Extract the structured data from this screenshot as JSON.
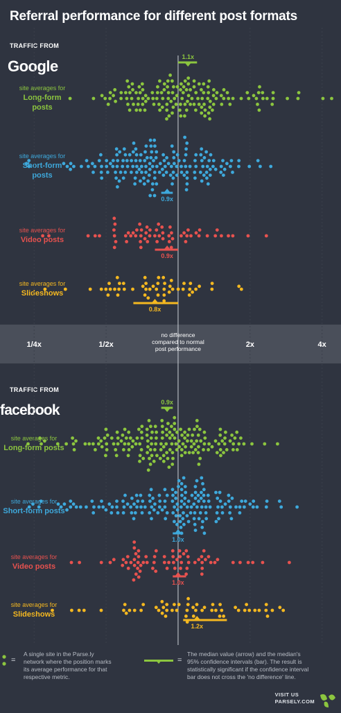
{
  "title": "Referral performance for different post formats",
  "axis": {
    "ticks": [
      {
        "value": 0.25,
        "label": "1/4x"
      },
      {
        "value": 0.5,
        "label": "1/2x"
      },
      {
        "value": 2,
        "label": "2x"
      },
      {
        "value": 4,
        "label": "4x"
      }
    ],
    "center_label": [
      "no difference",
      "compared to normal",
      "post performance"
    ]
  },
  "panels": [
    {
      "traffic_from": "TRAFFIC FROM",
      "source": "Google"
    },
    {
      "traffic_from": "TRAFFIC FROM",
      "source": "facebook"
    }
  ],
  "rows": [
    {
      "panel": 0,
      "sub": "site averages for",
      "main": "Long-form posts",
      "main_lines": [
        "Long-form",
        "posts"
      ],
      "median_label": "1.1x",
      "marker": "above"
    },
    {
      "panel": 0,
      "sub": "site averages for",
      "main": "Short-form posts",
      "main_lines": [
        "Short-form",
        "posts"
      ],
      "median_label": "0.9x",
      "marker": "below"
    },
    {
      "panel": 0,
      "sub": "site averages for",
      "main": "Video posts",
      "main_lines": [
        "Video posts"
      ],
      "median_label": "0.9x",
      "marker": "below"
    },
    {
      "panel": 0,
      "sub": "site averages for",
      "main": "Slideshows",
      "main_lines": [
        "Slideshows"
      ],
      "median_label": "0.8x",
      "marker": "below"
    },
    {
      "panel": 1,
      "sub": "site averages for",
      "main": "Long-form posts",
      "main_lines": [
        "Long-form posts"
      ],
      "median_label": "0.9x",
      "marker": "above"
    },
    {
      "panel": 1,
      "sub": "site averages for",
      "main": "Short-form posts",
      "main_lines": [
        "Short-form posts"
      ],
      "median_label": "1.0x",
      "marker": "below"
    },
    {
      "panel": 1,
      "sub": "site averages for",
      "main": "Video posts",
      "main_lines": [
        "Video posts"
      ],
      "median_label": "1.0x",
      "marker": "below"
    },
    {
      "panel": 1,
      "sub": "site averages for",
      "main": "Slideshows",
      "main_lines": [
        "Slideshows"
      ],
      "median_label": "1.2x",
      "marker": "below"
    }
  ],
  "colors": {
    "long_form": "#8cc63f",
    "short_form": "#3ea9dc",
    "video": "#e8524f",
    "slideshows": "#f5b820",
    "reference_line": "#cfd3d9",
    "axis_band": "#4a4f5a",
    "background": "#2f3440"
  },
  "chart_data": {
    "type": "scatter",
    "title": "Referral performance for different post formats",
    "xscale": "log2",
    "xlim": [
      0.18,
      4.8
    ],
    "reference": {
      "value": 1,
      "label": "no difference compared to normal post performance"
    },
    "series": [
      {
        "name": "Google Long-form posts",
        "median": 1.1,
        "ci": [
          1.0,
          1.2
        ],
        "spread": [
          0.3,
          4.5
        ],
        "count": 150
      },
      {
        "name": "Google Short-form posts",
        "median": 0.9,
        "ci": [
          0.85,
          0.95
        ],
        "spread": [
          0.22,
          3.0
        ],
        "count": 170
      },
      {
        "name": "Google Video posts",
        "median": 0.9,
        "ci": [
          0.8,
          1.0
        ],
        "spread": [
          0.27,
          2.4
        ],
        "count": 60
      },
      {
        "name": "Google Slideshows",
        "median": 0.8,
        "ci": [
          0.65,
          1.0
        ],
        "spread": [
          0.27,
          1.95
        ],
        "count": 50
      },
      {
        "name": "Facebook Long-form posts",
        "median": 0.9,
        "ci": [
          0.85,
          0.95
        ],
        "spread": [
          0.22,
          3.0
        ],
        "count": 175
      },
      {
        "name": "Facebook Short-form posts",
        "median": 1.0,
        "ci": [
          0.95,
          1.05
        ],
        "spread": [
          0.2,
          3.2
        ],
        "count": 170
      },
      {
        "name": "Facebook Video posts",
        "median": 1.0,
        "ci": [
          0.95,
          1.08
        ],
        "spread": [
          0.25,
          3.5
        ],
        "count": 70
      },
      {
        "name": "Facebook Slideshows",
        "median": 1.2,
        "ci": [
          1.05,
          1.6
        ],
        "spread": [
          0.2,
          4.2
        ],
        "count": 55
      }
    ]
  },
  "legend": {
    "dot_text": [
      "A single site in the Parse.ly",
      "network where the position marks",
      "its average performance for that",
      "respective metric."
    ],
    "bar_text": [
      "The median value (arrow) and the median's",
      "95% confidence intervals (bar). The result is",
      "statistically significant if the confidence interval",
      "bar does not cross the 'no difference' line."
    ],
    "equals": "="
  },
  "footer": {
    "line1": "VISIT US",
    "line2": "PARSELY.COM"
  }
}
